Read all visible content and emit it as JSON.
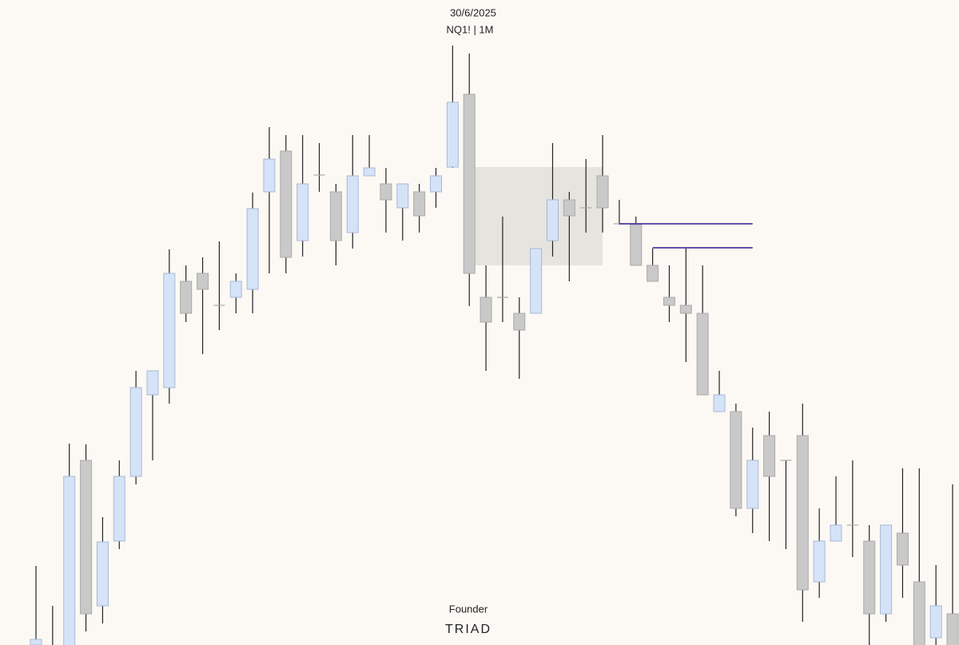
{
  "chart_data": {
    "type": "candlestick",
    "title": "30/6/2025",
    "subtitle": "NQ1! | 1M",
    "open": [
      0,
      -23,
      -13,
      231,
      49,
      130,
      211,
      313,
      322,
      455,
      465,
      425,
      435,
      445,
      567,
      618,
      506,
      588,
      567,
      516,
      587,
      577,
      547,
      567,
      567,
      598,
      689,
      435,
      435,
      415,
      415,
      506,
      557,
      547,
      587,
      527,
      526,
      475,
      435,
      425,
      415,
      292,
      292,
      171,
      262,
      231,
      262,
      79,
      130,
      150,
      130,
      39,
      140,
      79,
      9,
      39
    ],
    "high": [
      99,
      49,
      252,
      251,
      160,
      231,
      343,
      343,
      495,
      475,
      485,
      505,
      465,
      566,
      648,
      638,
      638,
      628,
      577,
      638,
      638,
      597,
      577,
      577,
      597,
      750,
      740,
      475,
      536,
      435,
      496,
      628,
      567,
      608,
      638,
      557,
      536,
      496,
      475,
      496,
      475,
      343,
      302,
      272,
      292,
      231,
      302,
      171,
      211,
      231,
      150,
      150,
      221,
      221,
      100,
      201
    ],
    "low": [
      -10,
      -30,
      -20,
      17,
      27,
      120,
      201,
      231,
      302,
      404,
      364,
      394,
      415,
      415,
      465,
      465,
      486,
      567,
      475,
      496,
      587,
      516,
      506,
      516,
      547,
      597,
      424,
      343,
      404,
      333,
      415,
      486,
      455,
      516,
      516,
      526,
      475,
      455,
      404,
      354,
      313,
      292,
      161,
      140,
      130,
      120,
      29,
      59,
      130,
      110,
      -10,
      29,
      59,
      -20,
      -10,
      -30
    ],
    "close": [
      7,
      -8,
      211,
      39,
      129,
      211,
      322,
      343,
      465,
      415,
      445,
      425,
      455,
      546,
      608,
      485,
      577,
      588,
      506,
      587,
      597,
      557,
      577,
      537,
      587,
      679,
      465,
      404,
      435,
      394,
      496,
      557,
      537,
      547,
      547,
      527,
      475,
      455,
      425,
      415,
      313,
      313,
      171,
      231,
      211,
      231,
      69,
      130,
      150,
      150,
      39,
      150,
      100,
      -10,
      49,
      -20
    ],
    "up_color": "#d5e3f8",
    "down_color": "#c9c9c9",
    "wick_color": "#222222",
    "ylim": [
      0,
      807
    ],
    "zone": {
      "start": 26,
      "end": 34,
      "top": 598,
      "bottom": 475,
      "color": "#e1e0da"
    },
    "levels": [
      {
        "start": 35,
        "end": 43,
        "value": 527,
        "color": "#4b3a9e"
      },
      {
        "start": 37,
        "end": 43,
        "value": 497,
        "color": "#4b3a9e"
      }
    ]
  },
  "footer": {
    "label": "Founder",
    "brand": "TRIAD"
  }
}
